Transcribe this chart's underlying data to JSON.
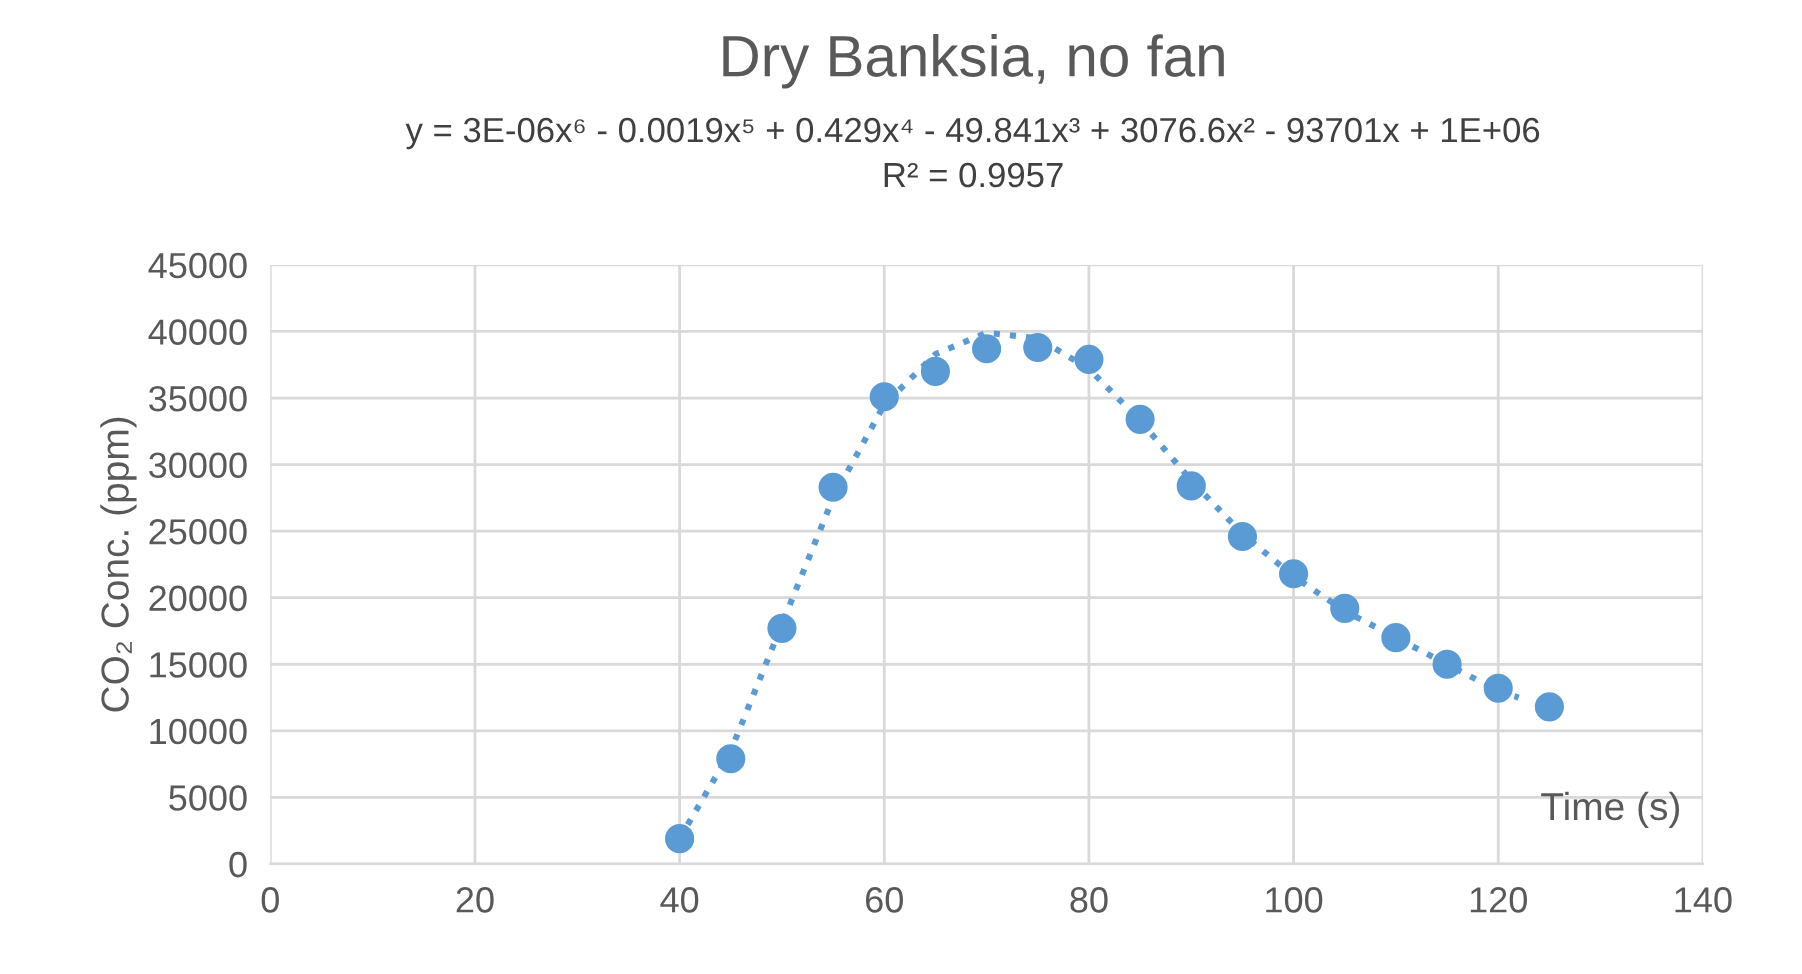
{
  "chart_data": {
    "type": "scatter",
    "title": "Dry Banksia, no fan",
    "subtitle": "y = 3E-06x⁶ - 0.0019x⁵ + 0.429x⁴ - 49.841x³ + 3076.6x² - 93701x + 1E+06\nR² = 0.9957",
    "xlabel": "Time (s)",
    "ylabel": "CO₂ Conc. (ppm)",
    "series": [
      {
        "color": "#5b9bd5",
        "marker": "circle",
        "x": [
          40,
          45,
          50,
          55,
          60,
          65,
          70,
          75,
          80,
          85,
          90,
          95,
          100,
          105,
          110,
          115,
          120,
          125
        ],
        "values": [
          1900,
          7900,
          17700,
          28300,
          35100,
          37000,
          38700,
          38800,
          37900,
          33400,
          28400,
          24600,
          21800,
          19200,
          17000,
          15000,
          13200,
          11800
        ]
      },
      {
        "type": "line",
        "color": "#5b9bd5",
        "line_style": "dotted",
        "x": [
          40,
          45,
          50,
          55,
          60,
          65,
          70,
          75,
          80,
          85,
          90,
          95,
          100,
          105,
          110,
          115,
          120,
          122
        ],
        "values": [
          1900,
          8500,
          18000,
          27500,
          34500,
          38300,
          39900,
          39500,
          37200,
          33300,
          28800,
          24800,
          21600,
          19000,
          17000,
          15000,
          13000,
          12500
        ]
      }
    ],
    "xlim": [
      0,
      140
    ],
    "xticks": [
      0,
      20,
      40,
      60,
      80,
      100,
      120,
      140
    ],
    "ylim": [
      0,
      45000
    ],
    "yticks": [
      0,
      5000,
      10000,
      15000,
      20000,
      25000,
      30000,
      35000,
      40000,
      45000
    ],
    "grid": true
  }
}
